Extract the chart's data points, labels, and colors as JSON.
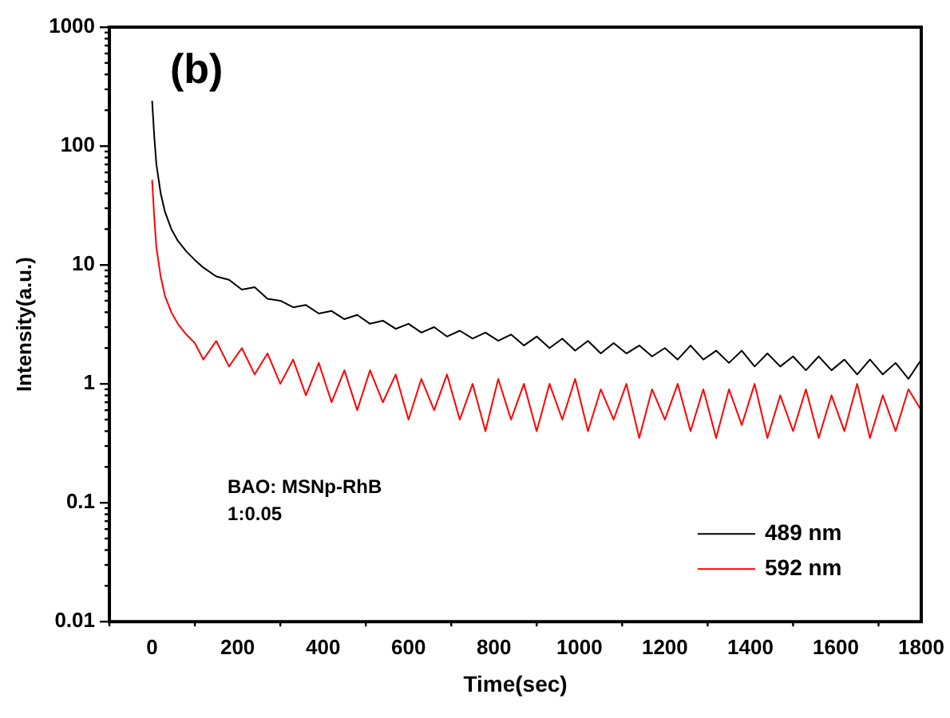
{
  "chart_data": {
    "type": "line",
    "xlabel": "Time(sec)",
    "ylabel": "Intensity(a.u.)",
    "annotations": [
      "(b)",
      "BAO: MSNp-RhB",
      "1:0.05"
    ],
    "log": "y",
    "grid": false,
    "legend": "bottom right",
    "marker": "none",
    "line_style": "solid",
    "xlim": [
      -100,
      1800
    ],
    "xticks": [
      0,
      200,
      400,
      600,
      800,
      1000,
      1200,
      1400,
      1600,
      1800
    ],
    "ylim": [
      0.01,
      1000
    ],
    "yticks": [
      0.01,
      0.1,
      1,
      10,
      100,
      1000
    ],
    "series": [
      {
        "name": "489 nm",
        "color": "#000000",
        "x": [
          0,
          5,
          10,
          20,
          30,
          45,
          60,
          80,
          100,
          120,
          150,
          180,
          210,
          240,
          270,
          300,
          330,
          360,
          390,
          420,
          450,
          480,
          510,
          540,
          570,
          600,
          630,
          660,
          690,
          720,
          750,
          780,
          810,
          840,
          870,
          900,
          930,
          960,
          990,
          1020,
          1050,
          1080,
          1110,
          1140,
          1170,
          1200,
          1230,
          1260,
          1290,
          1320,
          1350,
          1380,
          1410,
          1440,
          1470,
          1500,
          1530,
          1560,
          1590,
          1620,
          1650,
          1680,
          1710,
          1740,
          1770,
          1800
        ],
        "values": [
          240,
          120,
          70,
          40,
          28,
          20,
          16,
          13,
          11,
          9.5,
          8,
          7.5,
          6.2,
          6.5,
          5.2,
          5.0,
          4.4,
          4.6,
          3.9,
          4.1,
          3.5,
          3.8,
          3.2,
          3.4,
          2.9,
          3.2,
          2.7,
          3.0,
          2.5,
          2.8,
          2.4,
          2.7,
          2.3,
          2.6,
          2.1,
          2.5,
          2.0,
          2.4,
          1.9,
          2.3,
          1.8,
          2.2,
          1.8,
          2.1,
          1.7,
          2.0,
          1.6,
          2.1,
          1.6,
          1.9,
          1.5,
          1.9,
          1.4,
          1.8,
          1.4,
          1.7,
          1.3,
          1.7,
          1.3,
          1.6,
          1.2,
          1.6,
          1.2,
          1.5,
          1.1,
          1.6
        ]
      },
      {
        "name": "592 nm",
        "color": "#ff0000",
        "x": [
          0,
          5,
          10,
          20,
          30,
          45,
          60,
          80,
          100,
          120,
          150,
          180,
          210,
          240,
          270,
          300,
          330,
          360,
          390,
          420,
          450,
          480,
          510,
          540,
          570,
          600,
          630,
          660,
          690,
          720,
          750,
          780,
          810,
          840,
          870,
          900,
          930,
          960,
          990,
          1020,
          1050,
          1080,
          1110,
          1140,
          1170,
          1200,
          1230,
          1260,
          1290,
          1320,
          1350,
          1380,
          1410,
          1440,
          1470,
          1500,
          1530,
          1560,
          1590,
          1620,
          1650,
          1680,
          1710,
          1740,
          1770,
          1800
        ],
        "values": [
          52,
          25,
          14,
          8,
          5.5,
          4,
          3.2,
          2.6,
          2.2,
          1.6,
          2.3,
          1.4,
          2.0,
          1.2,
          1.8,
          1.0,
          1.6,
          0.8,
          1.5,
          0.7,
          1.3,
          0.6,
          1.3,
          0.7,
          1.2,
          0.5,
          1.1,
          0.6,
          1.2,
          0.5,
          1.0,
          0.4,
          1.1,
          0.5,
          1.0,
          0.4,
          1.0,
          0.5,
          1.1,
          0.4,
          0.9,
          0.5,
          1.0,
          0.35,
          0.9,
          0.5,
          1.0,
          0.4,
          0.9,
          0.35,
          0.9,
          0.45,
          1.0,
          0.35,
          0.8,
          0.4,
          0.9,
          0.35,
          0.8,
          0.4,
          1.0,
          0.35,
          0.8,
          0.4,
          0.9,
          0.6
        ]
      }
    ]
  }
}
